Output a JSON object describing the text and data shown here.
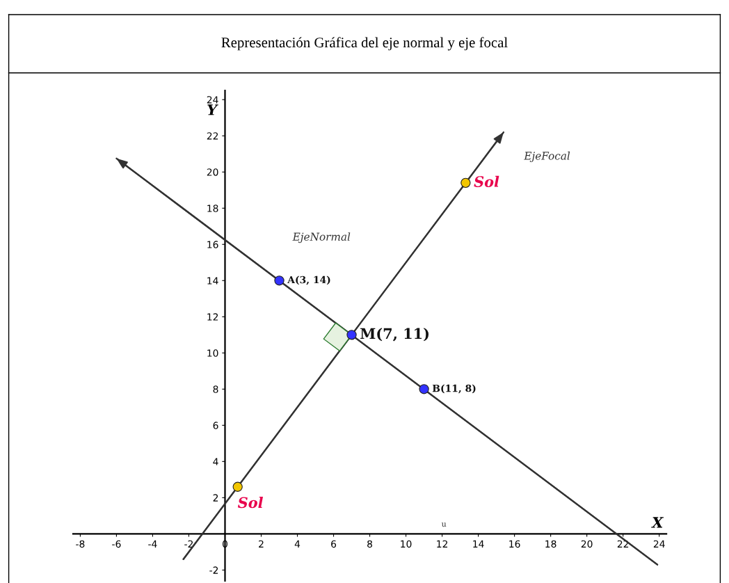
{
  "chart_data": {
    "type": "line",
    "title": "Representación Gráfica del eje normal y eje focal",
    "xlabel": "X",
    "ylabel": "Y",
    "xlim": [
      -8.4,
      24.4
    ],
    "ylim": [
      -2.6,
      24.5
    ],
    "xticks": [
      -8,
      -6,
      -4,
      -2,
      0,
      2,
      4,
      6,
      8,
      10,
      12,
      14,
      16,
      18,
      20,
      22,
      24
    ],
    "yticks": [
      -2,
      2,
      4,
      6,
      8,
      10,
      12,
      14,
      16,
      18,
      20,
      22,
      24
    ],
    "grid": false,
    "series": [
      {
        "color": "#333333",
        "x": [
          -6,
          23.9
        ],
        "values": [
          20.75,
          -1.7
        ]
      },
      {
        "color": "#333333",
        "x": [
          -2.3,
          15.4
        ],
        "values": [
          -1.4,
          22.2
        ]
      },
      {
        "type": "scatter",
        "color": "#3333ff",
        "x": [
          3,
          7,
          11
        ],
        "values": [
          14,
          11,
          8
        ],
        "value_labels": [
          "A(3, 14)",
          "M(7, 11)",
          "B(11, 8)"
        ]
      },
      {
        "type": "scatter",
        "color": "#f2c600",
        "x": [
          0.7,
          13.3
        ],
        "values": [
          2.6,
          19.4
        ],
        "value_labels": [
          "Sol",
          "Sol"
        ]
      }
    ],
    "annotations": [
      "EjeNormal",
      "EjeFocal",
      "u"
    ]
  }
}
